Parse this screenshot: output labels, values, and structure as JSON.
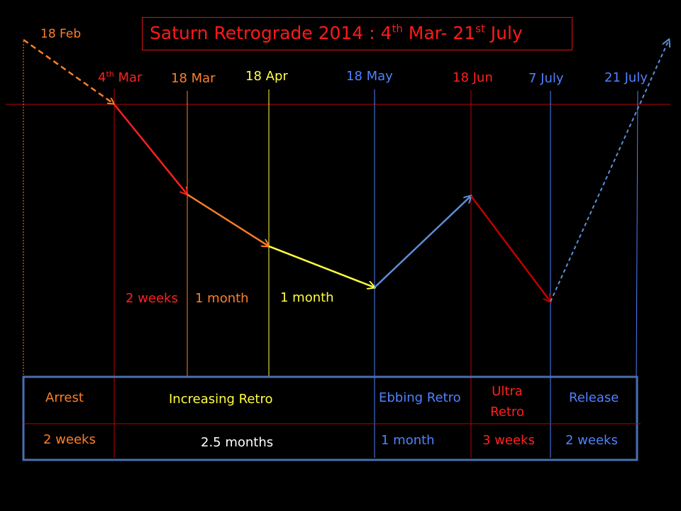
{
  "title": {
    "main": "Saturn Retrograde 2014 : 4",
    "sup1": "th",
    "mid": " Mar-  21",
    "sup2": "st",
    "end": " July"
  },
  "dates": [
    {
      "key": "feb18",
      "text": "18 Feb",
      "color": "#ff7f27"
    },
    {
      "key": "mar4",
      "text": "4",
      "sup": "th",
      "rest": " Mar",
      "color": "#ff2020"
    },
    {
      "key": "mar18",
      "text": "18 Mar",
      "color": "#ff7f27"
    },
    {
      "key": "apr18",
      "text": "18 Apr",
      "color": "#ffff40"
    },
    {
      "key": "may18",
      "text": "18 May",
      "color": "#4f81ff"
    },
    {
      "key": "jun18",
      "text": "18 Jun",
      "color": "#ff2020"
    },
    {
      "key": "jul7",
      "text": "7 July",
      "color": "#4f81ff"
    },
    {
      "key": "jul21",
      "text": "21 July",
      "color": "#4f81ff"
    }
  ],
  "intervals": [
    {
      "text": "2 weeks",
      "color": "#ff2020"
    },
    {
      "text": "1 month",
      "color": "#ff7f27"
    },
    {
      "text": "1 month",
      "color": "#ffff40"
    }
  ],
  "phases": [
    {
      "name": "Arrest",
      "duration": "2 weeks",
      "color": "#ff7f27",
      "duration_color": "#ff7f27"
    },
    {
      "name": "Increasing Retro",
      "duration": "2.5 months",
      "color": "#ffff40",
      "duration_color": "#ffffff"
    },
    {
      "name": "Ebbing Retro",
      "duration": "1 month",
      "color": "#4f81ff",
      "duration_color": "#4f81ff"
    },
    {
      "name_line1": "Ultra",
      "name_line2": "Retro",
      "duration": "3 weeks",
      "color": "#ff2020",
      "duration_color": "#ff2020"
    },
    {
      "name": "Release",
      "duration": "2 weeks",
      "color": "#4f81ff",
      "duration_color": "#4f81ff"
    }
  ],
  "colors": {
    "red": "#ff2020",
    "dark_red": "#c00000",
    "orange": "#ff7f27",
    "yellow": "#ffff40",
    "blue": "#5b8fd9",
    "table_border": "#4a6fb0",
    "background": "#000000"
  }
}
